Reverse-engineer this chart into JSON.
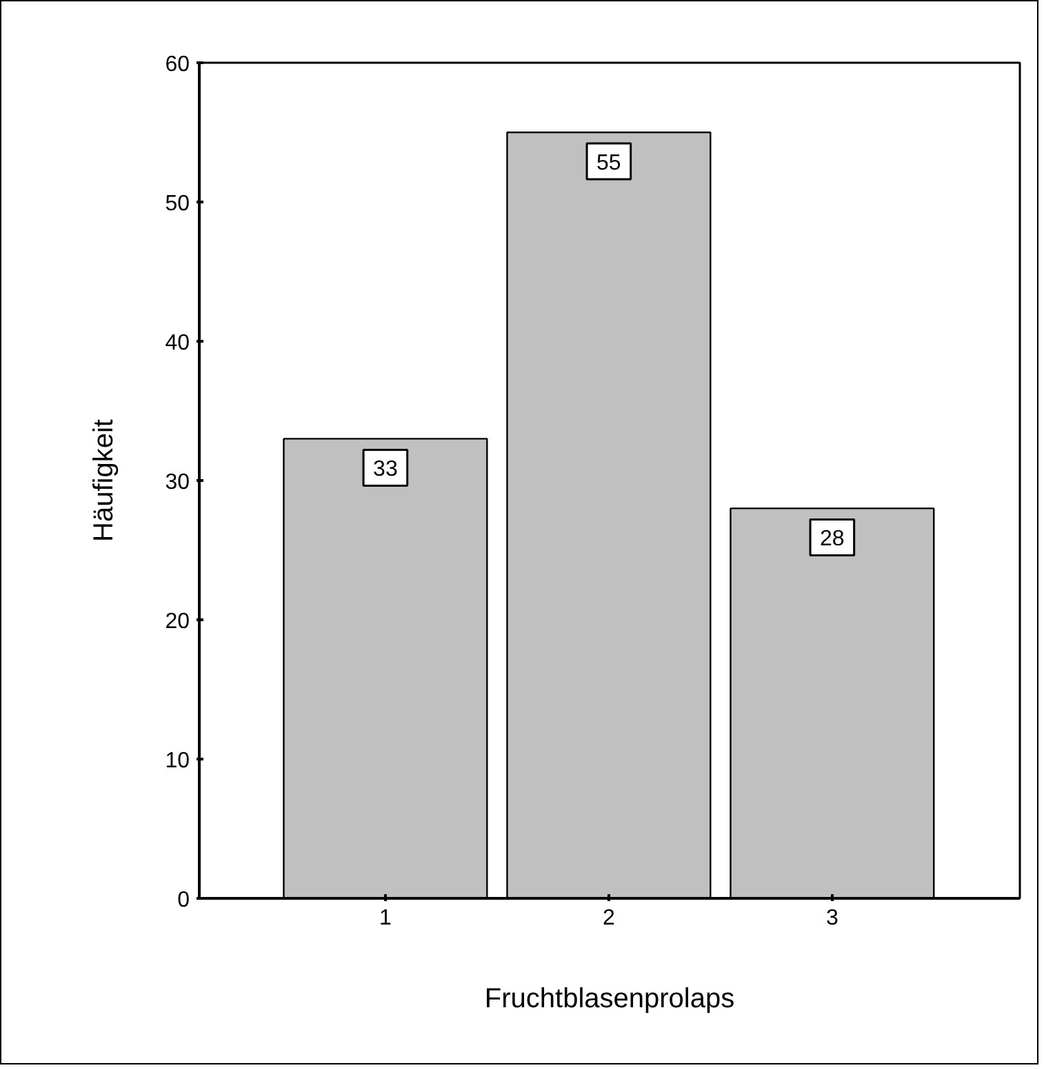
{
  "chart_data": {
    "type": "bar",
    "categories": [
      "1",
      "2",
      "3"
    ],
    "values": [
      33,
      55,
      28
    ],
    "color": "#c0c0c0",
    "ylim": [
      0,
      60
    ],
    "yticks": [
      0,
      10,
      20,
      30,
      40,
      50,
      60
    ],
    "xlabel": "Fruchtblasenprolaps",
    "ylabel": "Häufigkeit",
    "data_labels": true,
    "grid": false
  }
}
